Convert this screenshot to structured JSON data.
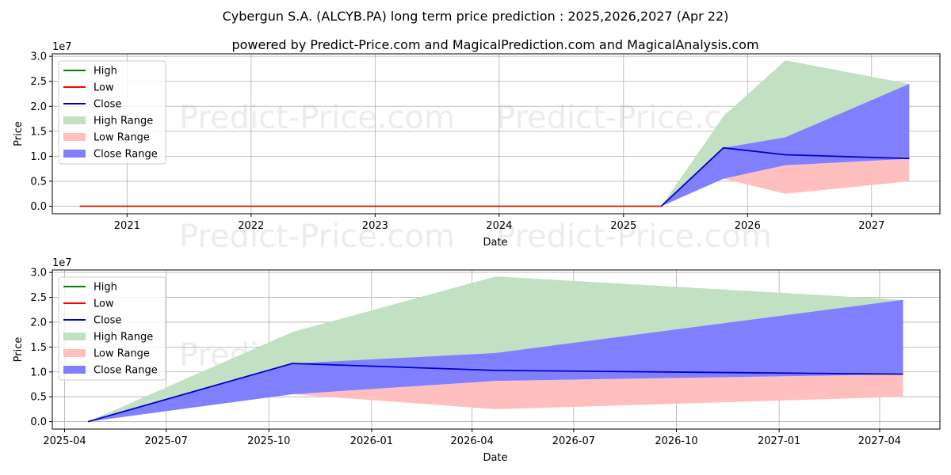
{
  "title_line1": "Cybergun S.A. (ALCYB.PA) long term price prediction : 2025,2026,2027 (Apr 22)",
  "title_line2": "powered by Predict-Price.com and MagicalPrediction.com and MagicalAnalysis.com",
  "watermark": "Predict-Price.com",
  "colors": {
    "high": "#008000",
    "low": "#ff0000",
    "close": "#0000cc",
    "high_range": "#c2e0c2",
    "low_range": "#ffbfbf",
    "close_range": "#8080ff",
    "grid": "#b0b0b0"
  },
  "legend": [
    "High",
    "Low",
    "Close",
    "High Range",
    "Low Range",
    "Close Range"
  ],
  "chart_data": [
    {
      "type": "area",
      "xlabel": "Date",
      "ylabel": "Price",
      "offset_label": "1e7",
      "x_type": "date",
      "xlim": [
        "2020-05-26",
        "2027-07-21"
      ],
      "ylim": [
        -0.15,
        3.05
      ],
      "y_scale_factor": 10000000,
      "x_ticks": [
        {
          "date": "2021-01-01",
          "label": "2021"
        },
        {
          "date": "2022-01-01",
          "label": "2022"
        },
        {
          "date": "2023-01-01",
          "label": "2023"
        },
        {
          "date": "2024-01-01",
          "label": "2024"
        },
        {
          "date": "2025-01-01",
          "label": "2025"
        },
        {
          "date": "2026-01-01",
          "label": "2026"
        },
        {
          "date": "2027-01-01",
          "label": "2027"
        }
      ],
      "y_ticks": [
        0.0,
        0.5,
        1.0,
        1.5,
        2.0,
        2.5,
        3.0
      ],
      "legend_position": "upper-left",
      "grid": true,
      "history": {
        "x": [
          "2020-08-15",
          "2025-04-22"
        ],
        "high": [
          0,
          0
        ],
        "low": [
          0,
          0
        ],
        "close": [
          0,
          0
        ]
      },
      "forecast": {
        "x": [
          "2025-04-22",
          "2025-10-22",
          "2026-04-22",
          "2027-04-22"
        ],
        "high_range_upper": [
          0,
          1.8,
          2.92,
          2.45
        ],
        "high_range_lower": [
          0,
          1.17,
          1.38,
          2.45
        ],
        "close": [
          0,
          1.17,
          1.03,
          0.955
        ],
        "close_range_upper": [
          0,
          1.17,
          1.38,
          2.45
        ],
        "close_range_lower": [
          0,
          0.55,
          0.82,
          0.95
        ],
        "low_range_upper": [
          0,
          0.55,
          0.82,
          0.95
        ],
        "low_range_lower": [
          0,
          0.55,
          0.25,
          0.5
        ]
      }
    },
    {
      "type": "area",
      "xlabel": "Date",
      "ylabel": "Price",
      "offset_label": "1e7",
      "x_type": "date",
      "xlim": [
        "2025-03-21",
        "2027-05-25"
      ],
      "ylim": [
        -0.15,
        3.05
      ],
      "y_scale_factor": 10000000,
      "x_ticks": [
        {
          "date": "2025-04-01",
          "label": "2025-04"
        },
        {
          "date": "2025-07-01",
          "label": "2025-07"
        },
        {
          "date": "2025-10-01",
          "label": "2025-10"
        },
        {
          "date": "2026-01-01",
          "label": "2026-01"
        },
        {
          "date": "2026-04-01",
          "label": "2026-04"
        },
        {
          "date": "2026-07-01",
          "label": "2026-07"
        },
        {
          "date": "2026-10-01",
          "label": "2026-10"
        },
        {
          "date": "2027-01-01",
          "label": "2027-01"
        },
        {
          "date": "2027-04-01",
          "label": "2027-04"
        }
      ],
      "y_ticks": [
        0.0,
        0.5,
        1.0,
        1.5,
        2.0,
        2.5,
        3.0
      ],
      "legend_position": "upper-left",
      "grid": true,
      "forecast": {
        "x": [
          "2025-04-22",
          "2025-10-22",
          "2026-04-22",
          "2027-04-22"
        ],
        "high_range_upper": [
          0,
          1.8,
          2.92,
          2.45
        ],
        "high_range_lower": [
          0,
          1.17,
          1.38,
          2.45
        ],
        "close": [
          0,
          1.17,
          1.03,
          0.955
        ],
        "close_range_upper": [
          0,
          1.17,
          1.38,
          2.45
        ],
        "close_range_lower": [
          0,
          0.55,
          0.82,
          0.95
        ],
        "low_range_upper": [
          0,
          0.55,
          0.82,
          0.95
        ],
        "low_range_lower": [
          0,
          0.55,
          0.25,
          0.5
        ]
      }
    }
  ]
}
